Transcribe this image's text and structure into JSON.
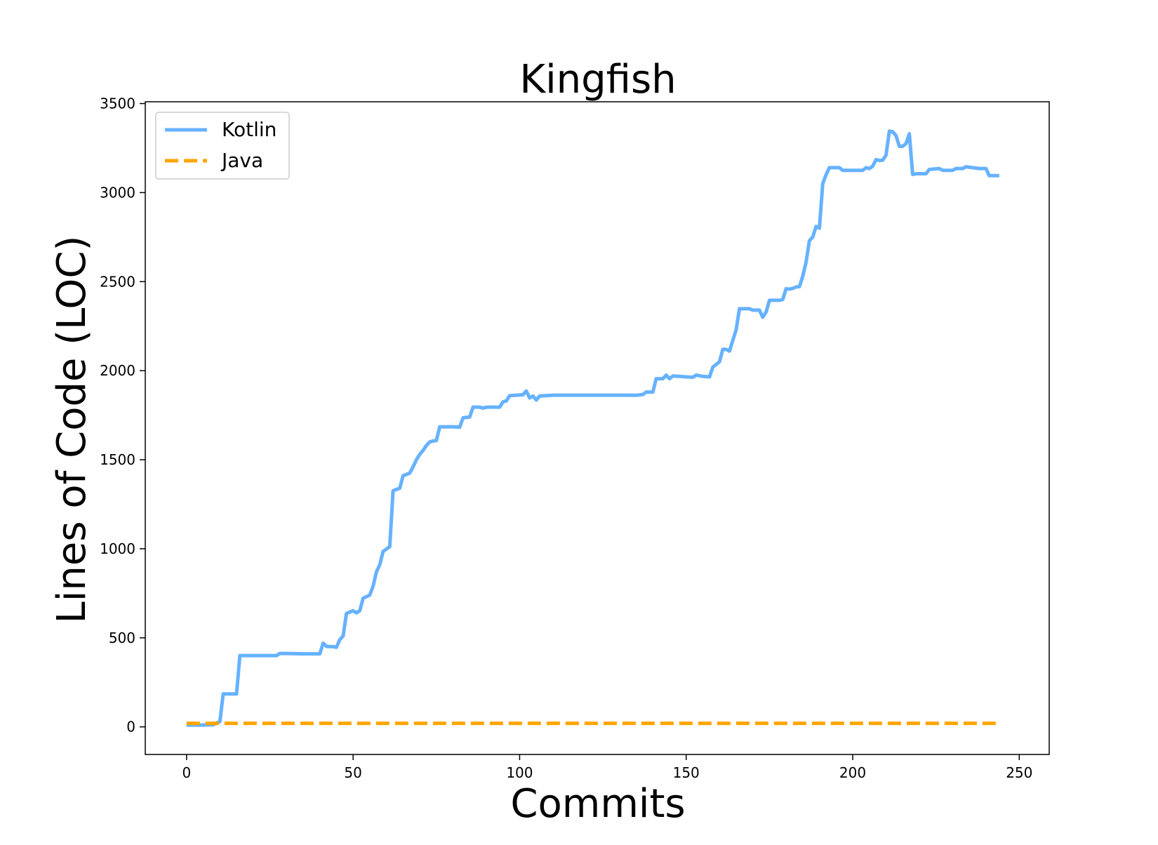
{
  "chart_data": {
    "type": "line",
    "title": "Kingfish",
    "xlabel": "Commits",
    "ylabel": "Lines of Code (LOC)",
    "xlim": [
      -12.4,
      259
    ],
    "ylim": [
      -155,
      3510
    ],
    "xticks": [
      0,
      50,
      100,
      150,
      200,
      250
    ],
    "yticks": [
      0,
      500,
      1000,
      1500,
      2000,
      2500,
      3000,
      3500
    ],
    "legend_position": "top-left",
    "grid": false,
    "series": [
      {
        "name": "Kotlin",
        "color": "#66b2ff",
        "style": "solid",
        "points": [
          [
            0,
            10
          ],
          [
            2,
            10
          ],
          [
            5,
            10
          ],
          [
            8,
            12
          ],
          [
            10,
            30
          ],
          [
            11,
            185
          ],
          [
            13,
            185
          ],
          [
            15,
            185
          ],
          [
            16,
            400
          ],
          [
            20,
            400
          ],
          [
            25,
            400
          ],
          [
            27,
            400
          ],
          [
            28,
            412
          ],
          [
            30,
            412
          ],
          [
            35,
            410
          ],
          [
            40,
            410
          ],
          [
            41,
            470
          ],
          [
            42,
            452
          ],
          [
            44,
            450
          ],
          [
            45,
            447
          ],
          [
            46,
            490
          ],
          [
            47,
            510
          ],
          [
            48,
            637
          ],
          [
            50,
            652
          ],
          [
            51,
            640
          ],
          [
            52,
            652
          ],
          [
            53,
            722
          ],
          [
            55,
            740
          ],
          [
            56,
            790
          ],
          [
            57,
            870
          ],
          [
            58,
            910
          ],
          [
            59,
            985
          ],
          [
            61,
            1012
          ],
          [
            62,
            1326
          ],
          [
            64,
            1340
          ],
          [
            65,
            1410
          ],
          [
            67,
            1425
          ],
          [
            68,
            1460
          ],
          [
            69,
            1500
          ],
          [
            70,
            1530
          ],
          [
            71,
            1552
          ],
          [
            72,
            1580
          ],
          [
            73,
            1600
          ],
          [
            74,
            1605
          ],
          [
            75,
            1608
          ],
          [
            76,
            1685
          ],
          [
            80,
            1685
          ],
          [
            82,
            1683
          ],
          [
            83,
            1735
          ],
          [
            85,
            1740
          ],
          [
            86,
            1795
          ],
          [
            88,
            1795
          ],
          [
            89,
            1790
          ],
          [
            90,
            1795
          ],
          [
            94,
            1795
          ],
          [
            95,
            1825
          ],
          [
            96,
            1830
          ],
          [
            97,
            1860
          ],
          [
            99,
            1862
          ],
          [
            101,
            1865
          ],
          [
            102,
            1886
          ],
          [
            103,
            1847
          ],
          [
            104,
            1858
          ],
          [
            105,
            1835
          ],
          [
            106,
            1858
          ],
          [
            110,
            1862
          ],
          [
            120,
            1862
          ],
          [
            130,
            1862
          ],
          [
            135,
            1862
          ],
          [
            137,
            1866
          ],
          [
            138,
            1880
          ],
          [
            140,
            1880
          ],
          [
            141,
            1955
          ],
          [
            143,
            1955
          ],
          [
            144,
            1975
          ],
          [
            145,
            1955
          ],
          [
            146,
            1970
          ],
          [
            148,
            1968
          ],
          [
            150,
            1965
          ],
          [
            152,
            1963
          ],
          [
            153,
            1975
          ],
          [
            155,
            1968
          ],
          [
            157,
            1965
          ],
          [
            158,
            2020
          ],
          [
            159,
            2035
          ],
          [
            160,
            2050
          ],
          [
            161,
            2120
          ],
          [
            162,
            2120
          ],
          [
            163,
            2110
          ],
          [
            164,
            2170
          ],
          [
            165,
            2230
          ],
          [
            166,
            2348
          ],
          [
            169,
            2348
          ],
          [
            170,
            2340
          ],
          [
            172,
            2340
          ],
          [
            173,
            2300
          ],
          [
            174,
            2330
          ],
          [
            175,
            2395
          ],
          [
            178,
            2395
          ],
          [
            179,
            2400
          ],
          [
            180,
            2460
          ],
          [
            181,
            2458
          ],
          [
            182,
            2462
          ],
          [
            183,
            2470
          ],
          [
            184,
            2472
          ],
          [
            185,
            2530
          ],
          [
            186,
            2610
          ],
          [
            187,
            2730
          ],
          [
            188,
            2750
          ],
          [
            189,
            2810
          ],
          [
            190,
            2800
          ],
          [
            191,
            3050
          ],
          [
            192,
            3100
          ],
          [
            193,
            3140
          ],
          [
            196,
            3140
          ],
          [
            197,
            3125
          ],
          [
            200,
            3125
          ],
          [
            203,
            3125
          ],
          [
            204,
            3140
          ],
          [
            205,
            3135
          ],
          [
            206,
            3148
          ],
          [
            207,
            3185
          ],
          [
            208,
            3180
          ],
          [
            209,
            3182
          ],
          [
            210,
            3210
          ],
          [
            211,
            3345
          ],
          [
            212,
            3342
          ],
          [
            213,
            3320
          ],
          [
            214,
            3260
          ],
          [
            215,
            3260
          ],
          [
            216,
            3275
          ],
          [
            217,
            3330
          ],
          [
            218,
            3102
          ],
          [
            219,
            3106
          ],
          [
            222,
            3106
          ],
          [
            223,
            3130
          ],
          [
            226,
            3135
          ],
          [
            227,
            3125
          ],
          [
            230,
            3125
          ],
          [
            231,
            3135
          ],
          [
            233,
            3135
          ],
          [
            234,
            3145
          ],
          [
            236,
            3140
          ],
          [
            238,
            3135
          ],
          [
            240,
            3135
          ],
          [
            241,
            3095
          ],
          [
            244,
            3095
          ]
        ]
      },
      {
        "name": "Java",
        "color": "#ffa500",
        "style": "dashed",
        "points": [
          [
            0,
            20
          ],
          [
            244,
            20
          ]
        ]
      }
    ]
  }
}
